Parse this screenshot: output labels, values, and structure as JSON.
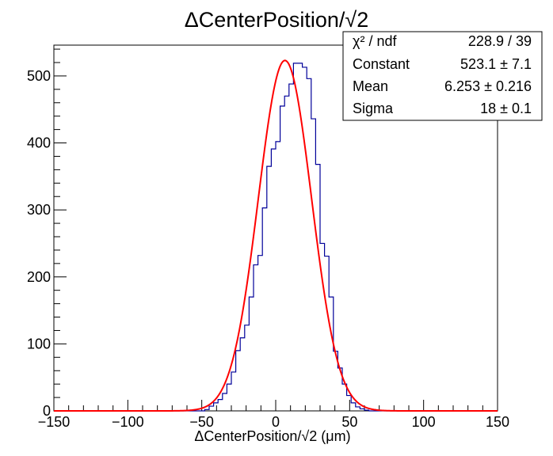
{
  "chart_data": {
    "type": "histogram",
    "title": "ΔCenterPosition/√2",
    "xlabel": "ΔCenterPosition/√2 (μm)",
    "ylabel": "",
    "xlim": [
      -150,
      150
    ],
    "ylim": [
      0,
      546
    ],
    "x_ticks": [
      -150,
      -100,
      -50,
      0,
      50,
      100,
      150
    ],
    "y_ticks": [
      0,
      100,
      200,
      300,
      400,
      500
    ],
    "bins": {
      "edges_start": -150,
      "bin_width": 3,
      "counts": [
        0,
        0,
        0,
        0,
        0,
        0,
        0,
        0,
        0,
        0,
        0,
        0,
        0,
        0,
        0,
        0,
        0,
        0,
        0,
        0,
        0,
        0,
        0,
        0,
        0,
        0,
        0,
        0,
        0,
        0,
        0,
        0,
        0,
        0,
        2,
        7,
        12,
        17,
        26,
        40,
        58,
        90,
        109,
        128,
        170,
        218,
        232,
        303,
        365,
        391,
        402,
        455,
        470,
        488,
        519,
        519,
        513,
        496,
        436,
        368,
        250,
        231,
        170,
        89,
        64,
        40,
        23,
        12,
        6,
        3,
        1,
        0,
        0,
        0,
        0,
        0,
        0,
        0,
        0,
        0,
        0,
        0,
        0,
        0,
        0,
        0,
        0,
        0,
        0,
        0,
        0,
        0,
        0,
        0,
        0,
        0,
        0,
        0,
        0,
        0
      ]
    },
    "fit": {
      "function": "gaus",
      "constant": 523.1,
      "mean": 6.253,
      "sigma": 18.0,
      "color": "#ff0000"
    },
    "histogram_color": "#000099",
    "stats_box": {
      "position": "top-right",
      "rows": [
        {
          "label": "χ² / ndf",
          "value": "228.9 / 39"
        },
        {
          "label": "Constant",
          "value": "523.1 ± 7.1"
        },
        {
          "label": "Mean",
          "value": "6.253 ± 0.216"
        },
        {
          "label": "Sigma",
          "value": "18 ± 0.1"
        }
      ]
    }
  }
}
